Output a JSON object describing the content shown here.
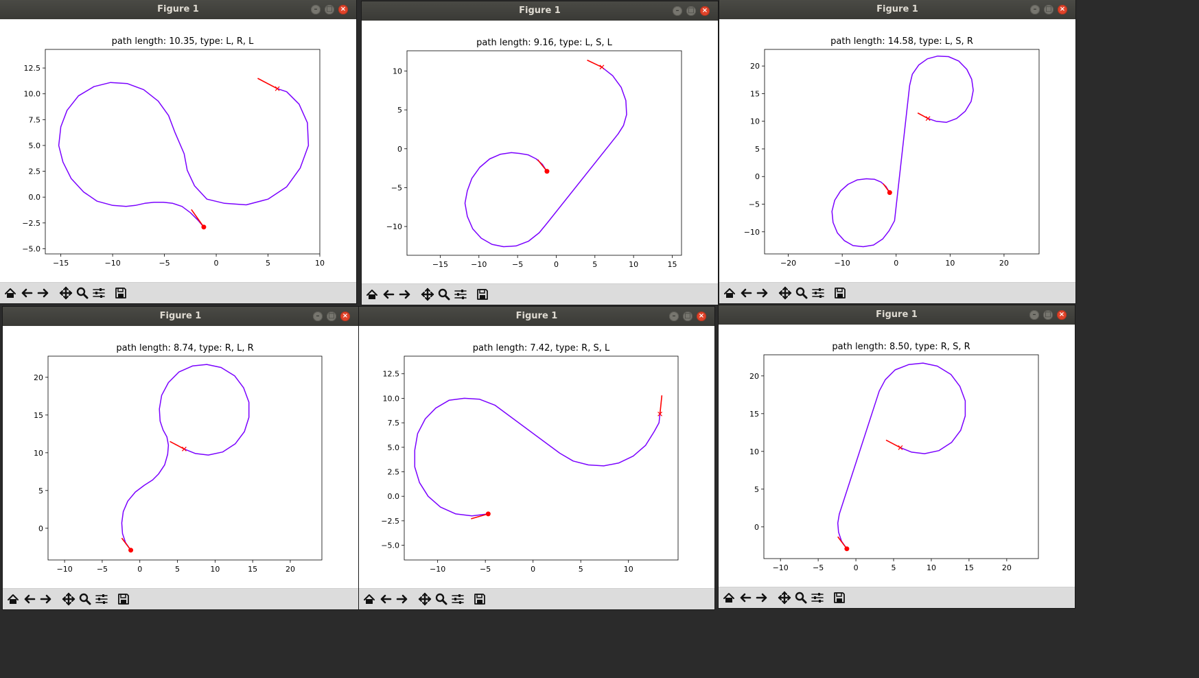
{
  "windows": [
    {
      "title": "Figure 1",
      "chart_data": {
        "type": "line",
        "title": "path length: 10.35, type: L, R, L",
        "xlim": [
          -16.5,
          10
        ],
        "ylim": [
          -5.5,
          14.3
        ],
        "xticks": [
          -15,
          -10,
          -5,
          0,
          5,
          10
        ],
        "yticks": [
          -5.0,
          -2.5,
          0.0,
          2.5,
          5.0,
          7.5,
          10.0,
          12.5
        ],
        "ytick_decimals": 1,
        "grid": false,
        "start": {
          "x": -1.2,
          "y": -2.9,
          "heading_to": {
            "x": -2.4,
            "y": -1.2
          }
        },
        "goal": {
          "x": 5.9,
          "y": 10.5,
          "heading_to": {
            "x": 4.0,
            "y": 11.5
          }
        },
        "path": [
          [
            -1.2,
            -2.9
          ],
          [
            -1.8,
            -2.2
          ],
          [
            -2.5,
            -1.5
          ],
          [
            -3.3,
            -0.9
          ],
          [
            -4.2,
            -0.6
          ],
          [
            -5.1,
            -0.5
          ],
          [
            -6.0,
            -0.5
          ],
          [
            -6.9,
            -0.6
          ],
          [
            -7.8,
            -0.8
          ],
          [
            -8.7,
            -0.9
          ],
          [
            -10.0,
            -0.8
          ],
          [
            -11.5,
            -0.4
          ],
          [
            -12.8,
            0.5
          ],
          [
            -14.0,
            1.8
          ],
          [
            -14.8,
            3.4
          ],
          [
            -15.2,
            5.0
          ],
          [
            -15.0,
            6.8
          ],
          [
            -14.4,
            8.4
          ],
          [
            -13.3,
            9.8
          ],
          [
            -11.8,
            10.7
          ],
          [
            -10.2,
            11.1
          ],
          [
            -8.6,
            11.0
          ],
          [
            -7.0,
            10.4
          ],
          [
            -5.6,
            9.3
          ],
          [
            -4.6,
            7.9
          ],
          [
            -4.0,
            6.3
          ],
          [
            -3.1,
            4.2
          ],
          [
            -2.8,
            2.6
          ],
          [
            -2.1,
            1.1
          ],
          [
            -0.9,
            -0.2
          ],
          [
            0.8,
            -0.6
          ],
          [
            2.9,
            -0.75
          ],
          [
            5.0,
            -0.2
          ],
          [
            6.8,
            1.0
          ],
          [
            8.1,
            2.8
          ],
          [
            8.9,
            5.0
          ],
          [
            8.8,
            7.2
          ],
          [
            8.0,
            9.0
          ],
          [
            6.8,
            10.2
          ],
          [
            5.9,
            10.5
          ]
        ]
      },
      "path_color": "#7a00ff",
      "marker_color": "#ff0000"
    },
    {
      "title": "Figure 1",
      "chart_data": {
        "type": "line",
        "title": "path length: 9.16, type: L, S, L",
        "xlim": [
          -19.3,
          16.2
        ],
        "ylim": [
          -13.7,
          12.6
        ],
        "xticks": [
          -15,
          -10,
          -5,
          0,
          5,
          10,
          15
        ],
        "yticks": [
          -10,
          -5,
          0,
          5,
          10
        ],
        "ytick_decimals": 0,
        "grid": false,
        "start": {
          "x": -1.2,
          "y": -2.9,
          "heading_to": {
            "x": -2.4,
            "y": -1.4
          }
        },
        "goal": {
          "x": 5.9,
          "y": 10.5,
          "heading_to": {
            "x": 4.0,
            "y": 11.4
          }
        },
        "path": [
          [
            -1.2,
            -2.9
          ],
          [
            -1.8,
            -2.0
          ],
          [
            -2.6,
            -1.3
          ],
          [
            -3.6,
            -0.8
          ],
          [
            -4.7,
            -0.6
          ],
          [
            -5.8,
            -0.5
          ],
          [
            -7.2,
            -0.7
          ],
          [
            -8.6,
            -1.3
          ],
          [
            -9.9,
            -2.4
          ],
          [
            -10.9,
            -3.8
          ],
          [
            -11.5,
            -5.4
          ],
          [
            -11.8,
            -7.0
          ],
          [
            -11.5,
            -8.7
          ],
          [
            -10.8,
            -10.3
          ],
          [
            -9.7,
            -11.5
          ],
          [
            -8.3,
            -12.3
          ],
          [
            -6.8,
            -12.6
          ],
          [
            -5.2,
            -12.5
          ],
          [
            -3.6,
            -11.9
          ],
          [
            -2.2,
            -10.8
          ],
          [
            -1.2,
            -9.6
          ],
          [
            8.0,
            1.9
          ],
          [
            8.7,
            3.0
          ],
          [
            9.1,
            4.4
          ],
          [
            9.0,
            6.2
          ],
          [
            8.4,
            7.9
          ],
          [
            7.3,
            9.4
          ],
          [
            5.9,
            10.5
          ]
        ]
      },
      "path_color": "#7a00ff",
      "marker_color": "#ff0000"
    },
    {
      "title": "Figure 1",
      "chart_data": {
        "type": "line",
        "title": "path length: 14.58, type: L, S, R",
        "xlim": [
          -24.4,
          26.5
        ],
        "ylim": [
          -14.0,
          23.0
        ],
        "xticks": [
          -20,
          -10,
          0,
          10,
          20
        ],
        "yticks": [
          -10,
          -5,
          0,
          5,
          10,
          15,
          20
        ],
        "ytick_decimals": 0,
        "grid": false,
        "start": {
          "x": -1.2,
          "y": -2.9,
          "heading_to": {
            "x": -2.4,
            "y": -1.3
          }
        },
        "goal": {
          "x": 5.9,
          "y": 10.5,
          "heading_to": {
            "x": 4.0,
            "y": 11.5
          }
        },
        "path": [
          [
            -1.2,
            -2.9
          ],
          [
            -1.9,
            -1.8
          ],
          [
            -2.8,
            -1.0
          ],
          [
            -4.0,
            -0.5
          ],
          [
            -5.5,
            -0.4
          ],
          [
            -7.2,
            -0.6
          ],
          [
            -8.9,
            -1.4
          ],
          [
            -10.3,
            -2.6
          ],
          [
            -11.4,
            -4.3
          ],
          [
            -11.9,
            -6.3
          ],
          [
            -11.7,
            -8.3
          ],
          [
            -10.9,
            -10.2
          ],
          [
            -9.6,
            -11.6
          ],
          [
            -8.0,
            -12.5
          ],
          [
            -6.1,
            -12.7
          ],
          [
            -4.2,
            -12.4
          ],
          [
            -2.5,
            -11.3
          ],
          [
            -1.3,
            -9.8
          ],
          [
            -0.3,
            -8.0
          ],
          [
            2.5,
            16.5
          ],
          [
            3.0,
            18.5
          ],
          [
            4.2,
            20.2
          ],
          [
            5.8,
            21.3
          ],
          [
            7.7,
            21.8
          ],
          [
            9.7,
            21.7
          ],
          [
            11.6,
            20.9
          ],
          [
            13.1,
            19.4
          ],
          [
            14.0,
            17.6
          ],
          [
            14.3,
            15.6
          ],
          [
            13.9,
            13.6
          ],
          [
            12.8,
            11.8
          ],
          [
            11.2,
            10.5
          ],
          [
            9.3,
            9.8
          ],
          [
            7.4,
            10.0
          ],
          [
            5.9,
            10.5
          ]
        ]
      },
      "path_color": "#7a00ff",
      "marker_color": "#ff0000"
    },
    {
      "title": "Figure 1",
      "chart_data": {
        "type": "line",
        "title": "path length: 8.74, type: R, L, R",
        "xlim": [
          -12.2,
          24.2
        ],
        "ylim": [
          -4.2,
          22.8
        ],
        "xticks": [
          -10,
          -5,
          0,
          5,
          10,
          15,
          20
        ],
        "yticks": [
          0,
          5,
          10,
          15,
          20
        ],
        "ytick_decimals": 0,
        "grid": false,
        "start": {
          "x": -1.2,
          "y": -2.9,
          "heading_to": {
            "x": -2.4,
            "y": -1.3
          }
        },
        "goal": {
          "x": 5.9,
          "y": 10.5,
          "heading_to": {
            "x": 4.0,
            "y": 11.5
          }
        },
        "path": [
          [
            -1.2,
            -2.9
          ],
          [
            -1.9,
            -1.9
          ],
          [
            -2.3,
            -0.7
          ],
          [
            -2.4,
            0.7
          ],
          [
            -2.2,
            2.2
          ],
          [
            -1.6,
            3.6
          ],
          [
            -0.6,
            4.8
          ],
          [
            0.6,
            5.7
          ],
          [
            1.7,
            6.4
          ],
          [
            2.5,
            7.2
          ],
          [
            3.3,
            8.4
          ],
          [
            3.7,
            9.8
          ],
          [
            3.8,
            11.0
          ],
          [
            3.6,
            12.1
          ],
          [
            3.1,
            13.0
          ],
          [
            2.7,
            14.2
          ],
          [
            2.6,
            15.8
          ],
          [
            2.9,
            17.6
          ],
          [
            3.8,
            19.3
          ],
          [
            5.2,
            20.7
          ],
          [
            7.0,
            21.5
          ],
          [
            8.9,
            21.7
          ],
          [
            10.8,
            21.3
          ],
          [
            12.6,
            20.2
          ],
          [
            13.8,
            18.6
          ],
          [
            14.5,
            16.7
          ],
          [
            14.5,
            14.7
          ],
          [
            13.9,
            12.8
          ],
          [
            12.7,
            11.2
          ],
          [
            11.0,
            10.1
          ],
          [
            9.1,
            9.7
          ],
          [
            7.4,
            9.9
          ],
          [
            5.9,
            10.5
          ]
        ]
      },
      "path_color": "#7a00ff",
      "marker_color": "#ff0000"
    },
    {
      "title": "Figure 1",
      "chart_data": {
        "type": "line",
        "title": "path length: 7.42, type: R, S, L",
        "xlim": [
          -13.5,
          15.2
        ],
        "ylim": [
          -6.5,
          14.3
        ],
        "xticks": [
          -10,
          -5,
          0,
          5,
          10
        ],
        "yticks": [
          -5.0,
          -2.5,
          0.0,
          2.5,
          5.0,
          7.5,
          10.0,
          12.5
        ],
        "ytick_decimals": 1,
        "grid": false,
        "start": {
          "x": -4.7,
          "y": -1.8,
          "heading_to": {
            "x": -6.5,
            "y": -2.3
          }
        },
        "goal": {
          "x": 13.3,
          "y": 8.4,
          "heading_to": {
            "x": 13.5,
            "y": 10.3
          }
        },
        "path": [
          [
            -4.7,
            -1.8
          ],
          [
            -6.4,
            -2.0
          ],
          [
            -8.1,
            -1.8
          ],
          [
            -9.7,
            -1.1
          ],
          [
            -11.0,
            0.0
          ],
          [
            -11.9,
            1.4
          ],
          [
            -12.4,
            3.0
          ],
          [
            -12.4,
            4.7
          ],
          [
            -12.1,
            6.4
          ],
          [
            -11.3,
            7.9
          ],
          [
            -10.2,
            9.0
          ],
          [
            -8.8,
            9.8
          ],
          [
            -7.2,
            10.0
          ],
          [
            -5.6,
            9.9
          ],
          [
            -4.0,
            9.3
          ],
          [
            2.8,
            4.4
          ],
          [
            4.2,
            3.6
          ],
          [
            5.8,
            3.2
          ],
          [
            7.4,
            3.1
          ],
          [
            9.0,
            3.4
          ],
          [
            10.5,
            4.1
          ],
          [
            11.8,
            5.2
          ],
          [
            12.7,
            6.6
          ],
          [
            13.2,
            7.5
          ],
          [
            13.3,
            8.4
          ]
        ]
      },
      "path_color": "#7a00ff",
      "marker_color": "#ff0000"
    },
    {
      "title": "Figure 1",
      "chart_data": {
        "type": "line",
        "title": "path length: 8.50, type: R, S, R",
        "xlim": [
          -12.2,
          24.2
        ],
        "ylim": [
          -4.2,
          22.8
        ],
        "xticks": [
          -10,
          -5,
          0,
          5,
          10,
          15,
          20
        ],
        "yticks": [
          0,
          5,
          10,
          15,
          20
        ],
        "ytick_decimals": 0,
        "grid": false,
        "start": {
          "x": -1.2,
          "y": -2.9,
          "heading_to": {
            "x": -2.4,
            "y": -1.3
          }
        },
        "goal": {
          "x": 5.9,
          "y": 10.5,
          "heading_to": {
            "x": 4.0,
            "y": 11.5
          }
        },
        "path": [
          [
            -1.2,
            -2.9
          ],
          [
            -1.9,
            -1.9
          ],
          [
            -2.3,
            -0.7
          ],
          [
            -2.4,
            0.5
          ],
          [
            -2.2,
            1.7
          ],
          [
            3.1,
            18.0
          ],
          [
            3.9,
            19.5
          ],
          [
            5.2,
            20.8
          ],
          [
            7.0,
            21.5
          ],
          [
            8.9,
            21.7
          ],
          [
            10.8,
            21.3
          ],
          [
            12.6,
            20.2
          ],
          [
            13.8,
            18.6
          ],
          [
            14.5,
            16.7
          ],
          [
            14.5,
            14.7
          ],
          [
            13.9,
            12.8
          ],
          [
            12.7,
            11.2
          ],
          [
            11.0,
            10.1
          ],
          [
            9.1,
            9.7
          ],
          [
            7.4,
            9.9
          ],
          [
            5.9,
            10.5
          ]
        ]
      },
      "path_color": "#7a00ff",
      "marker_color": "#ff0000"
    }
  ]
}
